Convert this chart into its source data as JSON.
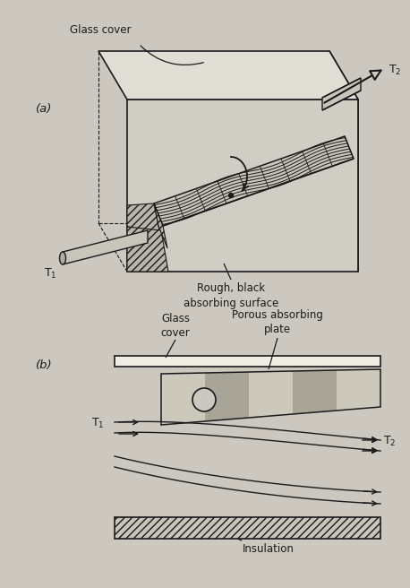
{
  "bg_color": "#ccc8c0",
  "line_color": "#1a1a1a",
  "fig_width": 4.32,
  "fig_height": 6.37,
  "label_glass_cover_a": "Glass cover",
  "label_rough": "Rough, black\nabsorbing surface",
  "label_t1_a": "T$_1$",
  "label_t2_a": "T$_2$",
  "title_a": "(a)",
  "label_glass_cover_b": "Glass\ncover",
  "label_porous": "Porous absorbing\nplate",
  "label_insulation": "Insulation",
  "label_t1_b": "T$_1$",
  "label_t2_b": "T$_2$",
  "title_b": "(b)"
}
